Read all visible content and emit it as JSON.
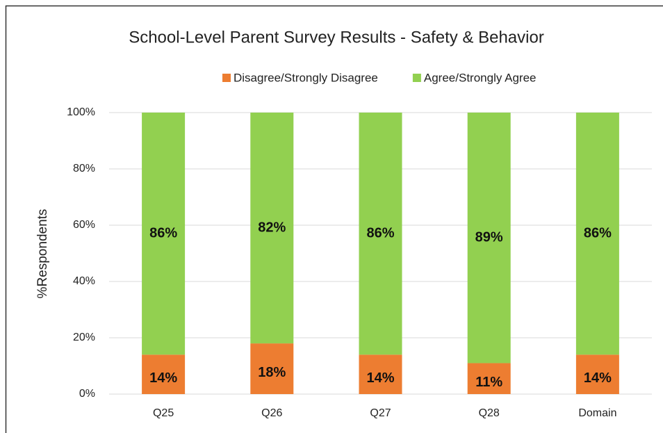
{
  "chart_data": {
    "type": "stacked_bar",
    "title": "School-Level Parent Survey Results - Safety & Behavior",
    "y_label": "%Respondents",
    "categories": [
      "Q25",
      "Q26",
      "Q27",
      "Q28",
      "Domain"
    ],
    "series": [
      {
        "name": "Disagree/Strongly Disagree",
        "color": "#ed7d31",
        "values": [
          14,
          18,
          14,
          11,
          14
        ],
        "value_labels": [
          "14%",
          "18%",
          "14%",
          "11%",
          "14%"
        ]
      },
      {
        "name": "Agree/Strongly Agree",
        "color": "#92d050",
        "values": [
          86,
          82,
          86,
          89,
          86
        ],
        "value_labels": [
          "86%",
          "82%",
          "86%",
          "89%",
          "86%"
        ]
      }
    ],
    "ylim": [
      0,
      100
    ],
    "yticks": [
      {
        "value": 0,
        "label": "0%"
      },
      {
        "value": 20,
        "label": "20%"
      },
      {
        "value": 40,
        "label": "40%"
      },
      {
        "value": 60,
        "label": "60%"
      },
      {
        "value": 80,
        "label": "80%"
      },
      {
        "value": 100,
        "label": "100%"
      }
    ],
    "grid": true,
    "legend": "top"
  }
}
